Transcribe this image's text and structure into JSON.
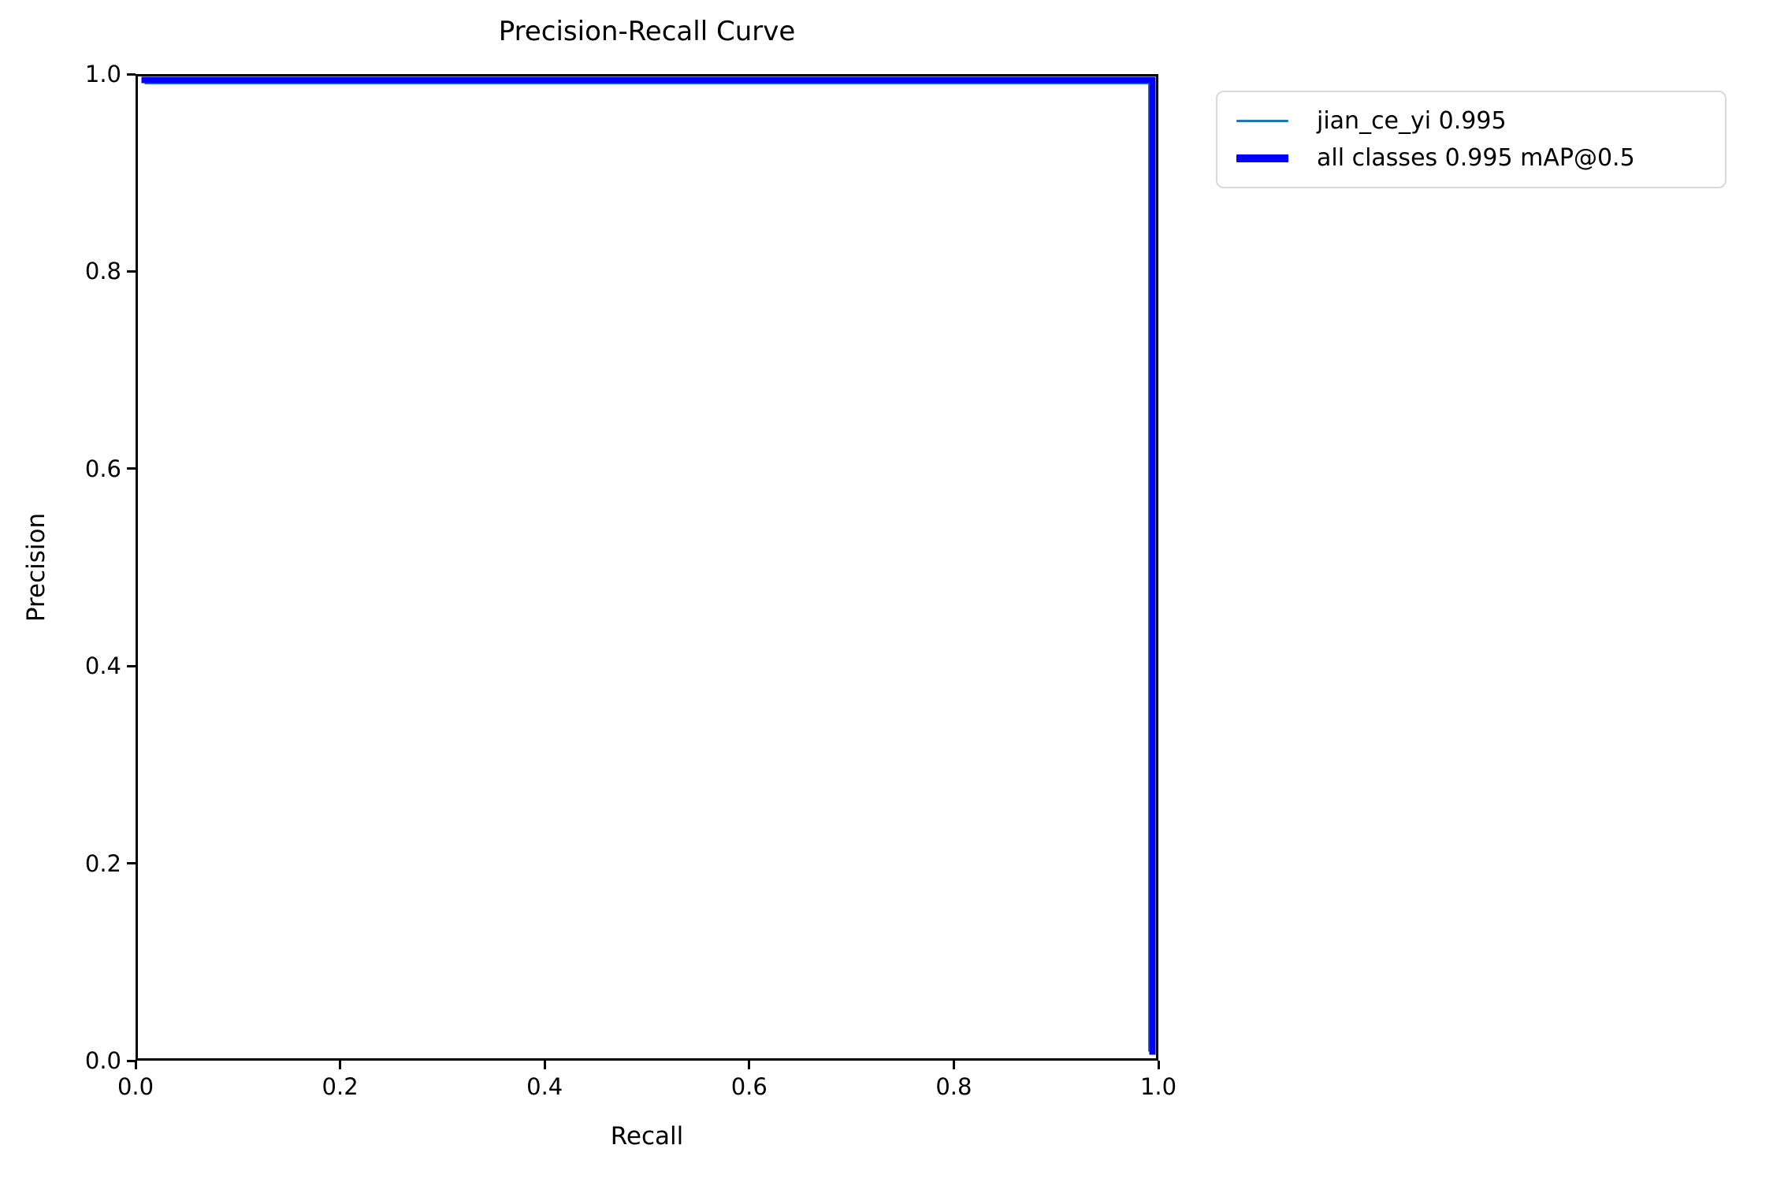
{
  "figure": {
    "background": "#ffffff",
    "axes_color": "#000000"
  },
  "chart_data": {
    "type": "line",
    "title": "Precision-Recall Curve",
    "xlabel": "Recall",
    "ylabel": "Precision",
    "xlim": [
      0.0,
      1.0
    ],
    "ylim": [
      0.0,
      1.0
    ],
    "x_ticks": [
      "0.0",
      "0.2",
      "0.4",
      "0.6",
      "0.8",
      "1.0"
    ],
    "y_ticks": [
      "0.0",
      "0.2",
      "0.4",
      "0.6",
      "0.8",
      "1.0"
    ],
    "grid": false,
    "legend": {
      "position": "upper-right-outside-axes",
      "border_color": "#d9d9d9",
      "background": "#ffffff"
    },
    "series": [
      {
        "name": "jian_ce_yi 0.995",
        "color": "#1f77b4",
        "linewidth": 1,
        "x": [
          0.0,
          1.0,
          1.0
        ],
        "y": [
          1.0,
          1.0,
          0.0
        ]
      },
      {
        "name": "all classes 0.995 mAP@0.5",
        "color": "#0000ff",
        "linewidth": 3,
        "x": [
          0.0,
          1.0,
          1.0
        ],
        "y": [
          1.0,
          1.0,
          0.0
        ]
      }
    ]
  }
}
